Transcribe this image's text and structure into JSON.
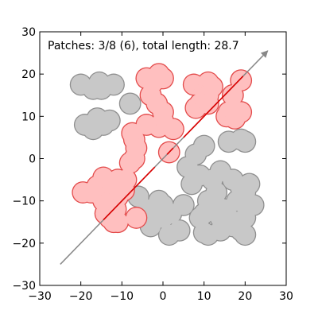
{
  "chart_data": {
    "type": "scatter",
    "annotation": "Patches: 3/8 (6), total length: 28.7",
    "xlim": [
      -30,
      30
    ],
    "ylim": [
      -30,
      30
    ],
    "xticks": [
      -30,
      -20,
      -10,
      0,
      10,
      20,
      30
    ],
    "yticks": [
      -30,
      -20,
      -10,
      0,
      10,
      20,
      30
    ],
    "xtick_labels": [
      "−30",
      "−20",
      "−10",
      "0",
      "10",
      "20",
      "30"
    ],
    "ytick_labels": [
      "−30",
      "−20",
      "−10",
      "0",
      "10",
      "20",
      "30"
    ],
    "grid": false,
    "circle_radius": 2.5,
    "colors": {
      "selected_fill": "#ffbfbf",
      "selected_edge": "#e34a4a",
      "unselected_fill": "#c8c8c8",
      "unselected_edge": "#8f8f8f",
      "direction_arrow": "#888888",
      "segment": "#dd0000"
    },
    "direction_arrow": {
      "from": [
        -25,
        -25
      ],
      "to": [
        25.5,
        25.5
      ]
    },
    "selected_segments": [
      {
        "from": [
          -14.5,
          -14.5
        ],
        "to": [
          -2,
          -2
        ]
      },
      {
        "from": [
          1,
          1
        ],
        "to": [
          2.5,
          2.5
        ]
      },
      {
        "from": [
          5,
          5
        ],
        "to": [
          19.5,
          19.5
        ]
      }
    ],
    "series": [
      {
        "name": "unselected",
        "points": [
          [
            -20,
            17.5
          ],
          [
            -17,
            16.5
          ],
          [
            -15.5,
            18
          ],
          [
            -15,
            16.5
          ],
          [
            -12,
            17.5
          ],
          [
            -8,
            13
          ],
          [
            -19,
            8
          ],
          [
            -17,
            7
          ],
          [
            -16,
            9.5
          ],
          [
            -14.5,
            8
          ],
          [
            -13,
            9
          ],
          [
            -6,
            -9
          ],
          [
            -4,
            -12
          ],
          [
            -3,
            -16
          ],
          [
            -1,
            -10
          ],
          [
            -1.5,
            -13
          ],
          [
            0,
            -14
          ],
          [
            0,
            -11
          ],
          [
            2,
            -13
          ],
          [
            1.5,
            -18
          ],
          [
            4,
            -17
          ],
          [
            5,
            -11
          ],
          [
            6,
            -2
          ],
          [
            7,
            -6
          ],
          [
            8,
            1
          ],
          [
            9,
            -4
          ],
          [
            10,
            3
          ],
          [
            12,
            -5
          ],
          [
            13,
            -8
          ],
          [
            14,
            -3
          ],
          [
            15,
            -12
          ],
          [
            16,
            -14
          ],
          [
            17,
            -5
          ],
          [
            18,
            -10
          ],
          [
            19,
            -7
          ],
          [
            20,
            -14
          ],
          [
            20,
            -8
          ],
          [
            21,
            -6
          ],
          [
            16,
            4
          ],
          [
            19,
            4.5
          ],
          [
            20,
            4
          ],
          [
            22,
            -11
          ],
          [
            20,
            -18
          ],
          [
            19,
            -17
          ],
          [
            17,
            -16
          ],
          [
            11,
            -18
          ],
          [
            14,
            -14
          ],
          [
            9,
            -14
          ],
          [
            10,
            -13
          ],
          [
            11,
            -10
          ],
          [
            12,
            -12
          ],
          [
            13,
            -11
          ],
          [
            10,
            -17.5
          ],
          [
            14,
            -17
          ]
        ]
      },
      {
        "name": "selected",
        "points": [
          [
            -4,
            19
          ],
          [
            -1.5,
            19
          ],
          [
            -1,
            20
          ],
          [
            0,
            19
          ],
          [
            -2.5,
            18
          ],
          [
            -3,
            15
          ],
          [
            -1.5,
            13
          ],
          [
            0,
            11
          ],
          [
            0,
            9
          ],
          [
            -1,
            7.5
          ],
          [
            2.5,
            7
          ],
          [
            -4,
            8
          ],
          [
            -7.5,
            6
          ],
          [
            -7,
            4.5
          ],
          [
            -6.5,
            2.5
          ],
          [
            -7,
            0
          ],
          [
            -8,
            -1
          ],
          [
            -9,
            -5
          ],
          [
            -9.5,
            -7.5
          ],
          [
            -11,
            -9
          ],
          [
            -12,
            -10
          ],
          [
            -11.5,
            -12
          ],
          [
            -13,
            -14
          ],
          [
            -12,
            -15
          ],
          [
            -11,
            -15
          ],
          [
            -14,
            -13
          ],
          [
            -14.5,
            -10
          ],
          [
            -15,
            -9
          ],
          [
            -17.5,
            -8
          ],
          [
            -19.5,
            -8
          ],
          [
            -16,
            -6.5
          ],
          [
            -14.5,
            -4.5
          ],
          [
            -12.5,
            -6
          ],
          [
            -11,
            -5
          ],
          [
            -6.5,
            -14
          ],
          [
            1.5,
            1.5
          ],
          [
            7.5,
            17.5
          ],
          [
            10,
            17
          ],
          [
            11,
            18
          ],
          [
            12,
            17
          ],
          [
            11,
            15
          ],
          [
            9,
            13
          ],
          [
            8,
            12
          ],
          [
            10,
            14
          ],
          [
            11,
            13
          ],
          [
            17,
            15
          ],
          [
            16,
            11
          ],
          [
            19,
            11
          ],
          [
            15.5,
            10
          ],
          [
            17.5,
            9.5
          ],
          [
            19,
            18.5
          ]
        ]
      }
    ]
  }
}
